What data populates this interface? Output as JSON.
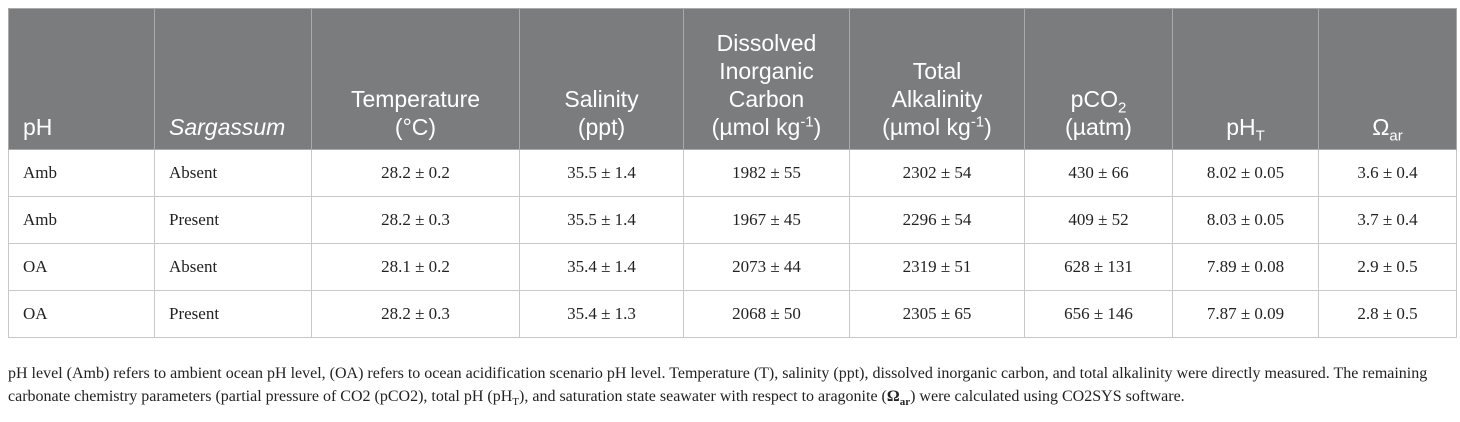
{
  "headers": {
    "ph": "pH",
    "sargassum": "Sargassum",
    "temperature_l1": "Temperature",
    "temperature_l2": "(°C)",
    "salinity_l1": "Salinity",
    "salinity_l2": "(ppt)",
    "dic_l1": "Dissolved",
    "dic_l2": "Inorganic",
    "dic_l3": "Carbon",
    "dic_unit": "(µmol kg",
    "dic_exp": "-1",
    "dic_close": ")",
    "ta_l1": "Total",
    "ta_l2": "Alkalinity",
    "ta_unit": "(µmol kg",
    "ta_exp": "-1",
    "ta_close": ")",
    "pco2_base": "pCO",
    "pco2_sub": "2",
    "pco2_unit": "(µatm)",
    "pht_base": "pH",
    "pht_sub": "T",
    "omega_base": "Ω",
    "omega_sub": "ar"
  },
  "rows": [
    [
      "Amb",
      "Absent",
      "28.2 ± 0.2",
      "35.5 ± 1.4",
      "1982 ± 55",
      "2302 ± 54",
      "430 ± 66",
      "8.02 ± 0.05",
      "3.6 ± 0.4"
    ],
    [
      "Amb",
      "Present",
      "28.2 ± 0.3",
      "35.5 ± 1.4",
      "1967 ± 45",
      "2296 ± 54",
      "409 ± 52",
      "8.03 ± 0.05",
      "3.7 ± 0.4"
    ],
    [
      "OA",
      "Absent",
      "28.1 ± 0.2",
      "35.4 ± 1.4",
      "2073 ± 44",
      "2319 ± 51",
      "628 ± 131",
      "7.89 ± 0.08",
      "2.9 ± 0.5"
    ],
    [
      "OA",
      "Present",
      "28.2 ± 0.3",
      "35.4 ± 1.3",
      "2068 ± 50",
      "2305 ± 65",
      "656 ± 146",
      "7.87 ± 0.09",
      "2.8 ± 0.5"
    ]
  ],
  "note": {
    "part1": "pH level (Amb) refers to ambient ocean pH level, (OA) refers to ocean acidification scenario pH level. Temperature (T), salinity (ppt), dissolved inorganic carbon, and total alkalinity were directly measured. The remaining carbonate chemistry parameters (partial pressure of CO2 (pCO2), total pH (pH",
    "sub_t": "T",
    "part2": "), and saturation state seawater with respect to aragonite (",
    "omega": "Ω",
    "omega_sub": "ar",
    "part3": ") were calculated using CO2SYS software."
  }
}
